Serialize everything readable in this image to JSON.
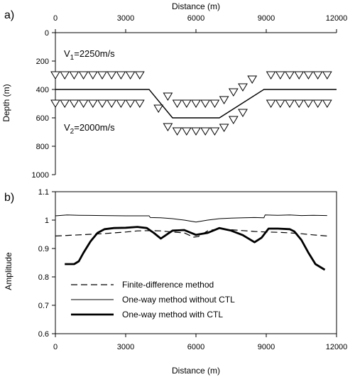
{
  "chart_data": [
    {
      "panel": "a)",
      "type": "line",
      "xlabel": "Distance (m)",
      "ylabel": "Depth (m)",
      "xlim": [
        0,
        12000
      ],
      "ylim": [
        1000,
        0
      ],
      "x_ticks": [
        "0",
        "3000",
        "6000",
        "9000",
        "12000"
      ],
      "y_ticks": [
        "0",
        "200",
        "400",
        "600",
        "800",
        "1000"
      ],
      "annotations": {
        "v1_main": "V",
        "v1_sub": "1",
        "v1_rest": "=2250m/s",
        "v2_main": "V",
        "v2_sub": "2",
        "v2_rest": "=2000m/s"
      },
      "interface": {
        "x": [
          0,
          4000,
          5000,
          7000,
          8900,
          12000
        ],
        "y": [
          400,
          400,
          600,
          600,
          400,
          400
        ]
      },
      "receivers_top": {
        "x": [
          0,
          400,
          800,
          1200,
          1600,
          2000,
          2400,
          2800,
          3200,
          3600,
          4800,
          5200,
          5600,
          6000,
          6400,
          6800,
          7200,
          7600,
          8000,
          8400,
          9200,
          9600,
          10000,
          10400,
          10800,
          11200,
          11600
        ],
        "y": [
          300,
          300,
          300,
          300,
          300,
          300,
          300,
          300,
          300,
          300,
          450,
          500,
          500,
          500,
          500,
          500,
          475,
          420,
          385,
          330,
          300,
          300,
          300,
          300,
          300,
          300,
          300
        ]
      },
      "receivers_bottom": {
        "x": [
          0,
          400,
          800,
          1200,
          1600,
          2000,
          2400,
          2800,
          3200,
          3600,
          4400,
          4800,
          5200,
          5600,
          6000,
          6400,
          6800,
          7200,
          7600,
          8000,
          9200,
          9600,
          10000,
          10400,
          10800,
          11200,
          11600
        ],
        "y": [
          500,
          500,
          500,
          500,
          500,
          500,
          500,
          500,
          500,
          500,
          535,
          665,
          695,
          695,
          695,
          695,
          695,
          670,
          615,
          565,
          500,
          500,
          500,
          500,
          500,
          500,
          500
        ]
      }
    },
    {
      "panel": "b)",
      "type": "line",
      "xlabel": "Distance (m)",
      "ylabel": "Amplitude",
      "xlim": [
        0,
        12000
      ],
      "ylim": [
        0.6,
        1.1
      ],
      "x_ticks": [
        "0",
        "3000",
        "6000",
        "9000",
        "12000"
      ],
      "y_ticks": [
        "0.6",
        "0.7",
        "0.8",
        "0.9",
        "1",
        "1.1"
      ],
      "legend_position": "bottom-left",
      "series": [
        {
          "name": "Finite-difference method",
          "style": "dashed",
          "x": [
            0,
            500,
            1000,
            1500,
            2000,
            2500,
            3000,
            3500,
            4000,
            4500,
            5000,
            5500,
            5900,
            6100,
            6300,
            6500,
            7000,
            7500,
            8000,
            8500,
            9000,
            9500,
            10000,
            10500,
            11000,
            11600
          ],
          "y": [
            0.944,
            0.946,
            0.948,
            0.95,
            0.952,
            0.955,
            0.958,
            0.962,
            0.963,
            0.962,
            0.958,
            0.955,
            0.94,
            0.942,
            0.952,
            0.962,
            0.97,
            0.966,
            0.963,
            0.96,
            0.958,
            0.957,
            0.955,
            0.952,
            0.948,
            0.944
          ]
        },
        {
          "name": "One-way method without CTL",
          "style": "thin",
          "x": [
            0,
            500,
            1000,
            2000,
            3000,
            4000,
            4050,
            4500,
            5000,
            5500,
            6000,
            6500,
            7000,
            7500,
            8000,
            8500,
            8900,
            8950,
            9500,
            10000,
            10500,
            11000,
            11600
          ],
          "y": [
            1.015,
            1.018,
            1.017,
            1.016,
            1.015,
            1.015,
            1.009,
            1.008,
            1.005,
            1.0,
            0.993,
            1.0,
            1.005,
            1.007,
            1.008,
            1.009,
            1.008,
            1.018,
            1.017,
            1.018,
            1.016,
            1.017,
            1.016
          ]
        },
        {
          "name": "One-way method with CTL",
          "style": "thick",
          "x": [
            400,
            800,
            1000,
            1200,
            1500,
            1800,
            2100,
            2500,
            3000,
            3500,
            3900,
            4200,
            4500,
            5000,
            5500,
            6000,
            6500,
            7000,
            7500,
            8000,
            8500,
            8800,
            9100,
            9500,
            10000,
            10200,
            10500,
            10800,
            11100,
            11500
          ],
          "y": [
            0.845,
            0.845,
            0.855,
            0.885,
            0.925,
            0.955,
            0.968,
            0.972,
            0.973,
            0.976,
            0.972,
            0.955,
            0.935,
            0.963,
            0.965,
            0.948,
            0.955,
            0.972,
            0.963,
            0.947,
            0.922,
            0.938,
            0.97,
            0.97,
            0.968,
            0.96,
            0.93,
            0.885,
            0.845,
            0.825
          ]
        }
      ]
    }
  ]
}
